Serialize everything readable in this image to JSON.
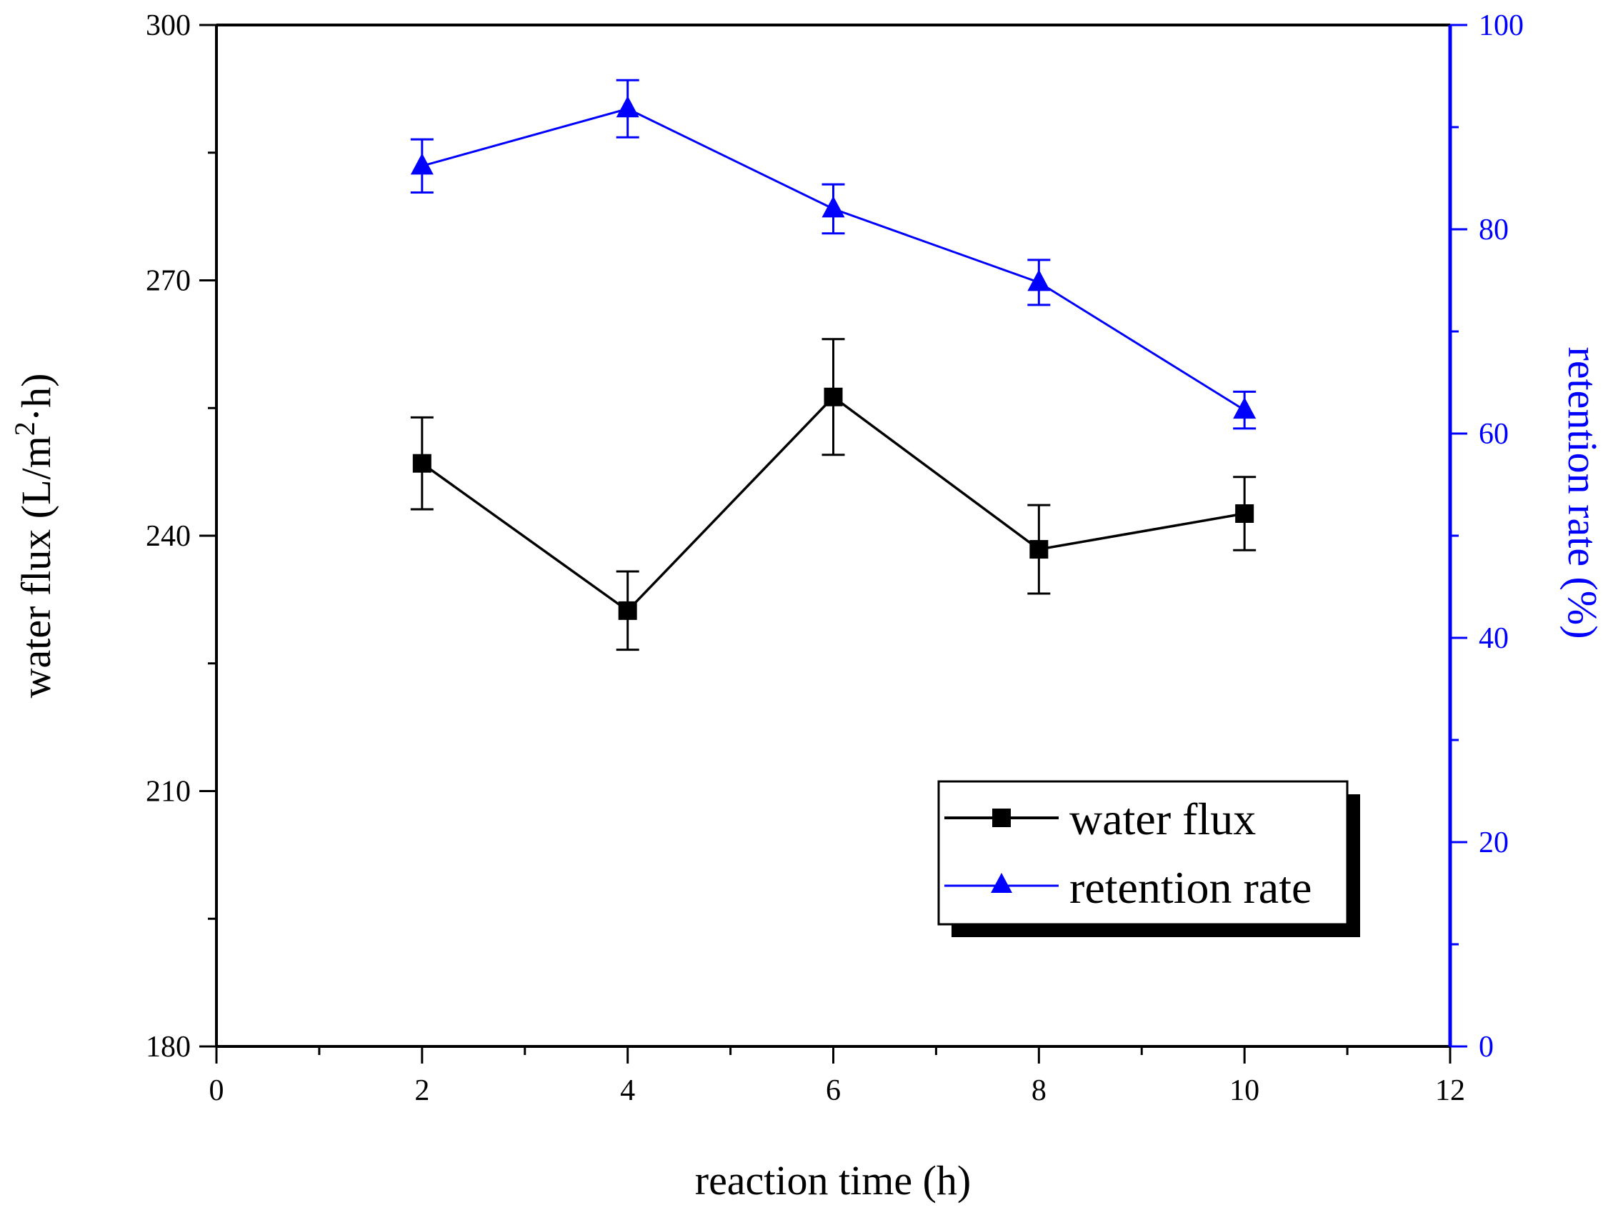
{
  "chart_data": {
    "type": "line",
    "title": "",
    "xlabel": "reaction time (h)",
    "ylabel_left_main": "water flux (L/m",
    "ylabel_left_sup": "2",
    "ylabel_left_tail": "·h)",
    "ylabel_right": "retention rate (%)",
    "xlim": [
      0,
      12
    ],
    "ylim_left": [
      180,
      300
    ],
    "ylim_right": [
      0,
      100
    ],
    "xticks": [
      "0",
      "2",
      "4",
      "6",
      "8",
      "10",
      "12"
    ],
    "yticks_left": [
      "180",
      "210",
      "240",
      "270",
      "300"
    ],
    "yticks_right": [
      "0",
      "20",
      "40",
      "60",
      "80",
      "100"
    ],
    "legend_position": "bottom-right",
    "colors": {
      "water_flux": "#000000",
      "retention_rate": "#0000ff"
    },
    "series": [
      {
        "name": "water flux",
        "axis": "left",
        "marker": "square",
        "x": [
          2,
          4,
          6,
          8,
          10
        ],
        "values": [
          248.5,
          231.2,
          256.3,
          238.4,
          242.6
        ],
        "error": [
          5.4,
          4.6,
          6.8,
          5.2,
          4.3
        ]
      },
      {
        "name": "retention rate",
        "axis": "right",
        "marker": "triangle",
        "x": [
          2,
          4,
          6,
          8,
          10
        ],
        "values": [
          86.2,
          91.8,
          82.0,
          74.8,
          62.3
        ],
        "error": [
          2.6,
          2.8,
          2.4,
          2.2,
          1.8
        ]
      }
    ]
  }
}
